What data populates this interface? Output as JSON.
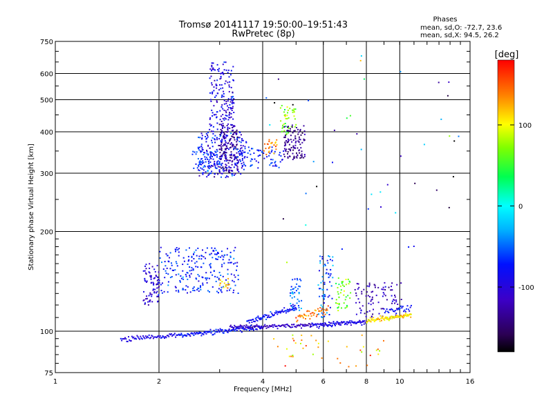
{
  "chart_data": {
    "type": "scatter",
    "title": "Tromsø 20141117 19:50:00–19:51:43",
    "subtitle": "RwPretec (8p)",
    "xlabel": "Frequency [MHz]",
    "ylabel": "Stationary phase Virtual Height [km]",
    "x_scale": "log",
    "y_scale": "log",
    "xlim": [
      1,
      16
    ],
    "ylim": [
      75,
      750
    ],
    "x_ticks": [
      1,
      2,
      4,
      6,
      8,
      10,
      16
    ],
    "x_tick_labels": [
      "1",
      "2",
      "4",
      "6",
      "8",
      "10",
      "16"
    ],
    "y_ticks": [
      75,
      100,
      200,
      300,
      400,
      500,
      600,
      750
    ],
    "y_tick_labels": [
      "75",
      "100",
      "200",
      "300",
      "400",
      "500",
      "600",
      "750"
    ],
    "grid": true,
    "stats": {
      "heading": "Phases",
      "line_o": "mean, sd,O: -72.7, 23.6",
      "line_x": "mean, sd,X:  94.5, 26.2"
    },
    "colorbar": {
      "label": "[deg]",
      "min": -180,
      "max": 180,
      "ticks": [
        100,
        0,
        -100
      ],
      "tick_labels": [
        "100",
        "0",
        "-100"
      ],
      "colormap": "rainbow"
    },
    "traces": [
      {
        "x_range": [
          1.55,
          2.3
        ],
        "h_start": 95,
        "h_end": 97,
        "phase": -90,
        "n": 70,
        "jitter": 1.5
      },
      {
        "x_range": [
          2.3,
          4.0
        ],
        "h_start": 97,
        "h_end": 103,
        "phase": -75,
        "n": 120,
        "jitter": 1.5
      },
      {
        "x_range": [
          3.2,
          5.5
        ],
        "h_start": 103,
        "h_end": 104,
        "phase": -115,
        "n": 110,
        "jitter": 1.2
      },
      {
        "x_range": [
          5.5,
          8.0
        ],
        "h_start": 104,
        "h_end": 107,
        "phase": -95,
        "n": 100,
        "jitter": 1.5
      },
      {
        "x_range": [
          8.0,
          10.8
        ],
        "h_start": 108,
        "h_end": 112,
        "phase": 110,
        "n": 90,
        "jitter": 1.5
      },
      {
        "x_range": [
          3.6,
          5.0
        ],
        "h_start": 106,
        "h_end": 118,
        "phase": -80,
        "n": 80,
        "jitter": 2
      },
      {
        "x_range": [
          5.0,
          6.2
        ],
        "h_start": 110,
        "h_end": 116,
        "phase": 140,
        "n": 45,
        "jitter": 3
      },
      {
        "x_range": [
          9.0,
          10.8
        ],
        "h_start": 115,
        "h_end": 118,
        "phase": -80,
        "n": 30,
        "jitter": 2
      }
    ],
    "clouds": [
      {
        "x_range": [
          1.8,
          2.0
        ],
        "h_range": [
          120,
          160
        ],
        "phase": -105,
        "spread": 25,
        "n": 80
      },
      {
        "x_range": [
          2.0,
          3.4
        ],
        "h_range": [
          130,
          180
        ],
        "phase": -72,
        "spread": 28,
        "n": 240
      },
      {
        "x_range": [
          3.0,
          3.2
        ],
        "h_range": [
          135,
          145
        ],
        "phase": 120,
        "spread": 20,
        "n": 15
      },
      {
        "x_range": [
          2.6,
          3.6
        ],
        "h_range": [
          290,
          400
        ],
        "phase": -85,
        "spread": 38,
        "n": 260
      },
      {
        "x_range": [
          2.8,
          3.3
        ],
        "h_range": [
          400,
          650
        ],
        "phase": -95,
        "spread": 34,
        "n": 180
      },
      {
        "x_range": [
          3.0,
          3.4
        ],
        "h_range": [
          300,
          420
        ],
        "phase": -135,
        "spread": 20,
        "n": 130
      },
      {
        "x_range": [
          2.5,
          3.0
        ],
        "h_range": [
          310,
          350
        ],
        "phase": -65,
        "spread": 20,
        "n": 50
      },
      {
        "x_range": [
          3.3,
          4.6
        ],
        "h_range": [
          310,
          360
        ],
        "phase": -70,
        "spread": 24,
        "n": 70
      },
      {
        "x_range": [
          4.0,
          4.4
        ],
        "h_range": [
          340,
          380
        ],
        "phase": 140,
        "spread": 25,
        "n": 25
      },
      {
        "x_range": [
          4.5,
          5.0
        ],
        "h_range": [
          390,
          480
        ],
        "phase": 75,
        "spread": 30,
        "n": 45
      },
      {
        "x_range": [
          4.6,
          5.3
        ],
        "h_range": [
          330,
          420
        ],
        "phase": -135,
        "spread": 18,
        "n": 110
      },
      {
        "x_range": [
          4.8,
          5.2
        ],
        "h_range": [
          115,
          145
        ],
        "phase": -50,
        "spread": 35,
        "n": 45
      },
      {
        "x_range": [
          5.8,
          6.4
        ],
        "h_range": [
          110,
          170
        ],
        "phase": -55,
        "spread": 40,
        "n": 70
      },
      {
        "x_range": [
          6.5,
          7.2
        ],
        "h_range": [
          115,
          145
        ],
        "phase": 60,
        "spread": 30,
        "n": 45
      },
      {
        "x_range": [
          7.4,
          10.2
        ],
        "h_range": [
          110,
          140
        ],
        "phase": -120,
        "spread": 25,
        "n": 90
      },
      {
        "x_range": [
          4.2,
          9.2
        ],
        "h_range": [
          78,
          98
        ],
        "phase": 120,
        "spread": 45,
        "n": 40
      },
      {
        "x_range": [
          4.0,
          15.0
        ],
        "h_range": [
          160,
          680
        ],
        "phase": -40,
        "spread": 130,
        "n": 45
      }
    ]
  }
}
